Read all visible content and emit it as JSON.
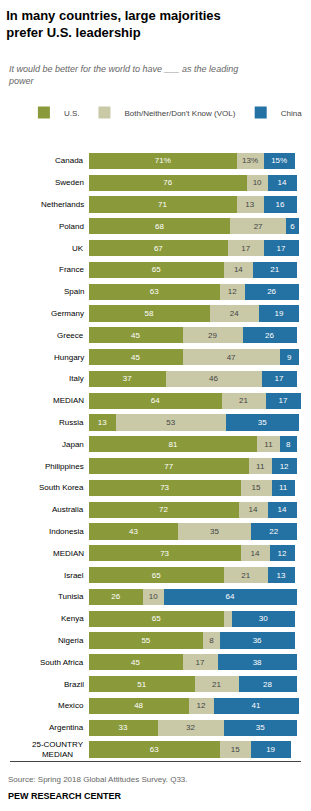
{
  "chart_data": {
    "type": "bar",
    "orientation": "horizontal",
    "stacked": true,
    "title": "In many countries, large majorities\nprefer U.S. leadership",
    "subtitle": "It would be better for the world to have ___ as the leading\npower",
    "annotations": [
      "Source: Spring 2018 Global Attitudes Survey. Q33.",
      "PEW RESEARCH CENTER"
    ],
    "categories": [
      "Canada",
      "Sweden",
      "Netherlands",
      "Poland",
      "UK",
      "France",
      "Spain",
      "Germany",
      "Greece",
      "Hungary",
      "Italy",
      "MEDIAN",
      "Russia",
      "Japan",
      "Philippines",
      "South Korea",
      "Australia",
      "Indonesia",
      "MEDIAN",
      "Israel",
      "Tunisia",
      "Kenya",
      "Nigeria",
      "South Africa",
      "Brazil",
      "Mexico",
      "Argentina",
      "25-COUNTRY\nMEDIAN"
    ],
    "series": [
      {
        "name": "U.S.",
        "color": "#8a9a3b",
        "values": [
          71,
          76,
          71,
          68,
          67,
          65,
          63,
          58,
          45,
          45,
          37,
          64,
          13,
          81,
          77,
          73,
          72,
          43,
          73,
          65,
          26,
          65,
          55,
          45,
          51,
          48,
          33,
          63
        ],
        "value_labels": [
          "71%",
          "76",
          "71",
          "68",
          "67",
          "65",
          "63",
          "58",
          "45",
          "45",
          "37",
          "64",
          "13",
          "81",
          "77",
          "73",
          "72",
          "43",
          "73",
          "65",
          "26",
          "65",
          "55",
          "45",
          "51",
          "48",
          "33",
          "63"
        ]
      },
      {
        "name": "Both/Neither/Don't Know (VOL)",
        "color": "#c9c9a8",
        "values": [
          13,
          10,
          13,
          27,
          17,
          14,
          12,
          24,
          29,
          47,
          46,
          21,
          53,
          11,
          11,
          15,
          14,
          35,
          14,
          21,
          10,
          4,
          8,
          17,
          21,
          12,
          32,
          15
        ],
        "value_labels": [
          "13%",
          "10",
          "13",
          "27",
          "17",
          "14",
          "12",
          "24",
          "29",
          "47",
          "46",
          "21",
          "53",
          "11",
          "11",
          "15",
          "14",
          "35",
          "14",
          "21",
          "10",
          null,
          "8",
          "17",
          "21",
          "12",
          "32",
          "15"
        ]
      },
      {
        "name": "China",
        "color": "#2471a3",
        "values": [
          15,
          14,
          16,
          6,
          17,
          21,
          26,
          19,
          26,
          9,
          17,
          17,
          35,
          8,
          12,
          11,
          14,
          22,
          12,
          13,
          64,
          30,
          36,
          38,
          28,
          41,
          35,
          19
        ],
        "value_labels": [
          "15%",
          "14",
          "16",
          "6",
          "17",
          "21",
          "26",
          "19",
          "26",
          "9",
          "17",
          "17",
          "35",
          "8",
          "12",
          "11",
          "14",
          "22",
          "12",
          "13",
          "64",
          "30",
          "36",
          "38",
          "28",
          "41",
          "35",
          "19"
        ]
      }
    ],
    "xlim": [
      -38,
      102
    ],
    "data_labels": true,
    "tick_labels": false,
    "grid": false,
    "legend": "upper right"
  }
}
